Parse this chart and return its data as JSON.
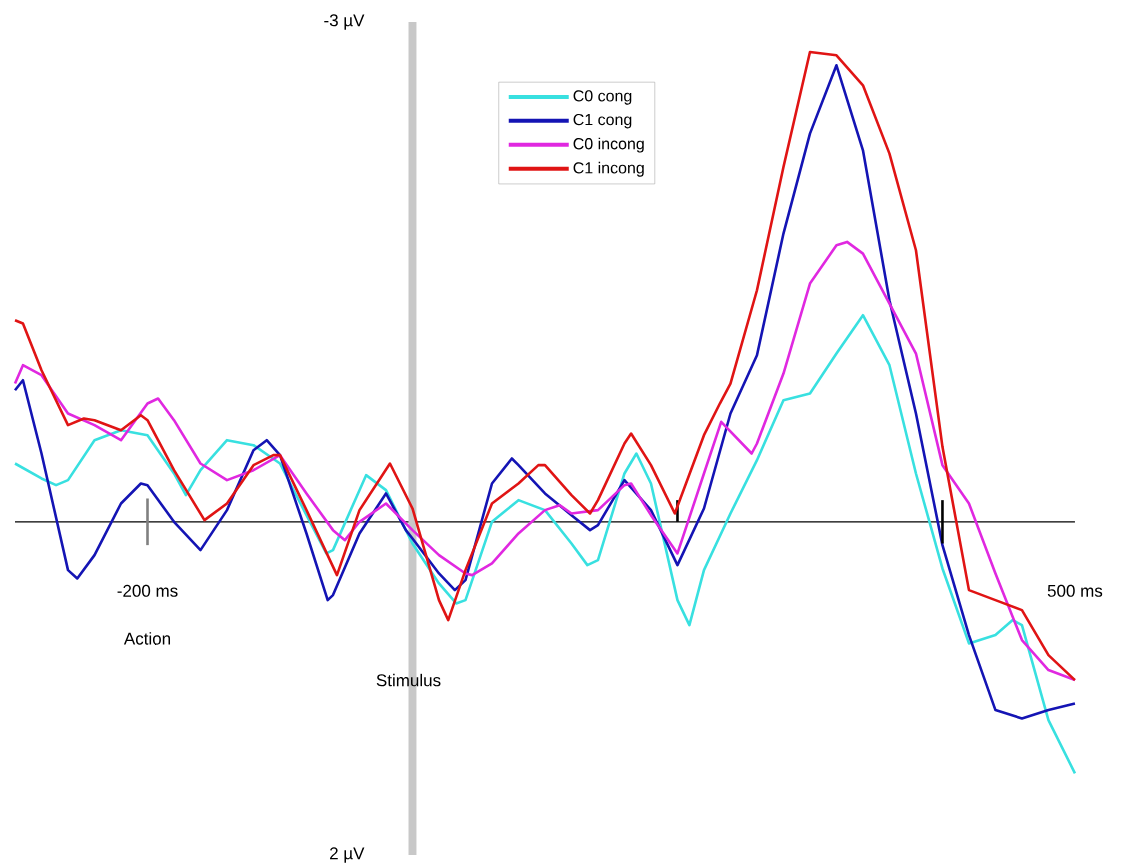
{
  "chart_data": {
    "type": "line",
    "xlim": [
      -300,
      500
    ],
    "ylim": [
      2,
      -3
    ],
    "xticks": [
      {
        "value": -200,
        "label": "-200 ms"
      },
      {
        "value": 500,
        "label": "500 ms"
      }
    ],
    "yticks": [
      {
        "value": -3,
        "label": "-3 µV"
      },
      {
        "value": 2,
        "label": "2 µV"
      }
    ],
    "legend": "top",
    "grid": false,
    "marker": "none",
    "line_style": "solid",
    "bands": [
      {
        "axis": "x",
        "from": -3,
        "to": 3,
        "label": "Stimulus",
        "color": "#c8c8c8"
      }
    ],
    "annotations": [
      "Action"
    ],
    "series": [
      {
        "name": "C0 cong",
        "color": "#38e0e0",
        "x": [
          -300,
          -280,
          -269,
          -260,
          -240,
          -220,
          -200,
          -180,
          -171,
          -160,
          -140,
          -120,
          -100,
          -80,
          -65,
          -60,
          -40,
          -35,
          -20,
          0,
          20,
          33,
          40,
          60,
          80,
          100,
          120,
          132,
          140,
          160,
          169,
          180,
          200,
          209,
          220,
          240,
          260,
          280,
          300,
          320,
          340,
          360,
          380,
          400,
          420,
          440,
          453,
          460,
          480,
          500
        ],
        "values": [
          -0.35,
          -0.26,
          -0.22,
          -0.25,
          -0.49,
          -0.55,
          -0.52,
          -0.29,
          -0.16,
          -0.31,
          -0.49,
          -0.46,
          -0.35,
          -0.04,
          0.19,
          0.17,
          -0.19,
          -0.28,
          -0.19,
          0.13,
          0.37,
          0.49,
          0.47,
          0.0,
          -0.13,
          -0.07,
          0.13,
          0.26,
          0.23,
          -0.29,
          -0.41,
          -0.23,
          0.47,
          0.62,
          0.29,
          -0.05,
          -0.37,
          -0.73,
          -0.77,
          -1.01,
          -1.24,
          -0.94,
          -0.29,
          0.28,
          0.73,
          0.68,
          0.59,
          0.62,
          1.19,
          1.51
        ]
      },
      {
        "name": "C1 cong",
        "color": "#1414b4",
        "x": [
          -300,
          -294,
          -280,
          -260,
          -253,
          -240,
          -220,
          -205,
          -200,
          -180,
          -160,
          -140,
          -120,
          -110,
          -100,
          -80,
          -64,
          -60,
          -40,
          -20,
          -5,
          0,
          20,
          32,
          40,
          60,
          75,
          80,
          100,
          120,
          134,
          140,
          160,
          180,
          200,
          220,
          240,
          260,
          280,
          300,
          320,
          340,
          360,
          380,
          400,
          420,
          440,
          460,
          480,
          500
        ],
        "values": [
          -0.79,
          -0.85,
          -0.41,
          0.29,
          0.34,
          0.2,
          -0.11,
          -0.23,
          -0.22,
          0.0,
          0.17,
          -0.07,
          -0.43,
          -0.49,
          -0.4,
          0.07,
          0.47,
          0.44,
          0.07,
          -0.17,
          0.05,
          0.1,
          0.31,
          0.41,
          0.35,
          -0.23,
          -0.38,
          -0.34,
          -0.17,
          -0.04,
          0.05,
          0.02,
          -0.25,
          -0.07,
          0.26,
          -0.08,
          -0.65,
          -1.0,
          -1.73,
          -2.33,
          -2.74,
          -2.23,
          -1.33,
          -0.65,
          0.14,
          0.68,
          1.13,
          1.18,
          1.13,
          1.09
        ]
      },
      {
        "name": "C0 incong",
        "color": "#e028e0",
        "x": [
          -300,
          -294,
          -280,
          -260,
          -240,
          -220,
          -200,
          -192,
          -180,
          -160,
          -140,
          -120,
          -100,
          -80,
          -60,
          -51,
          -40,
          -20,
          0,
          20,
          40,
          45,
          60,
          80,
          100,
          111,
          120,
          140,
          160,
          165,
          180,
          200,
          220,
          233,
          256,
          260,
          280,
          300,
          320,
          328,
          340,
          360,
          380,
          400,
          420,
          440,
          460,
          480,
          500
        ],
        "values": [
          -0.83,
          -0.94,
          -0.88,
          -0.65,
          -0.58,
          -0.49,
          -0.71,
          -0.74,
          -0.61,
          -0.35,
          -0.25,
          -0.31,
          -0.4,
          -0.17,
          0.05,
          0.11,
          0.0,
          -0.11,
          0.05,
          0.2,
          0.31,
          0.32,
          0.25,
          0.07,
          -0.07,
          -0.1,
          -0.05,
          -0.07,
          -0.22,
          -0.23,
          -0.04,
          0.19,
          -0.29,
          -0.6,
          -0.41,
          -0.47,
          -0.89,
          -1.43,
          -1.66,
          -1.68,
          -1.61,
          -1.31,
          -1.01,
          -0.34,
          -0.11,
          0.31,
          0.71,
          0.89,
          0.95
        ]
      },
      {
        "color": "#808080",
        "x": [
          -200,
          -200
        ],
        "values": [
          -0.14,
          0.14
        ]
      },
      {
        "color": "#000000",
        "x": [
          200,
          200
        ],
        "values": [
          -0.13,
          0
        ]
      },
      {
        "color": "#000000",
        "x": [
          400,
          400
        ],
        "values": [
          -0.13,
          0.13
        ]
      },
      {
        "name": "C1 incong",
        "color": "#e01414",
        "x": [
          -300,
          -294,
          -280,
          -260,
          -248,
          -240,
          -220,
          -205,
          -200,
          -180,
          -157,
          -140,
          -120,
          -105,
          -100,
          -80,
          -57,
          -40,
          -17,
          0,
          20,
          27,
          40,
          60,
          80,
          95,
          100,
          120,
          134,
          140,
          160,
          165,
          180,
          198,
          220,
          232,
          240,
          260,
          280,
          300,
          320,
          340,
          360,
          380,
          400,
          420,
          440,
          460,
          480,
          500
        ],
        "values": [
          -1.21,
          -1.19,
          -0.91,
          -0.58,
          -0.62,
          -0.61,
          -0.55,
          -0.64,
          -0.61,
          -0.31,
          -0.01,
          -0.11,
          -0.34,
          -0.4,
          -0.4,
          -0.07,
          0.32,
          -0.07,
          -0.35,
          -0.08,
          0.47,
          0.59,
          0.29,
          -0.11,
          -0.23,
          -0.34,
          -0.34,
          -0.16,
          -0.05,
          -0.13,
          -0.47,
          -0.53,
          -0.34,
          -0.05,
          -0.52,
          -0.71,
          -0.83,
          -1.39,
          -2.13,
          -2.82,
          -2.8,
          -2.62,
          -2.21,
          -1.63,
          -0.45,
          0.41,
          0.47,
          0.53,
          0.8,
          0.95
        ]
      }
    ]
  }
}
